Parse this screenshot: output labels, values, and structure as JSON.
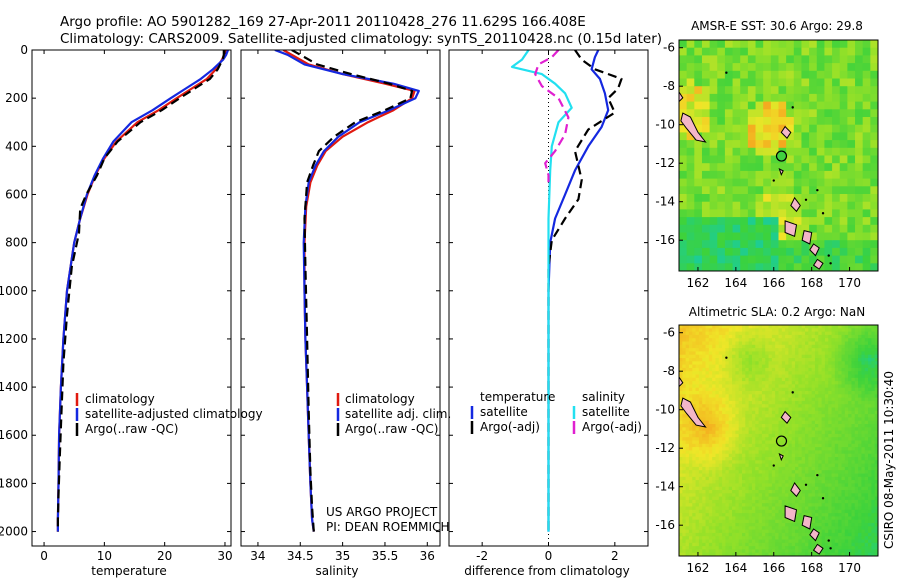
{
  "header": {
    "line1": "Argo profile: AO 5901282_169 27-Apr-2011 20110428_276 11.629S 166.408E",
    "line2": "Climatology: CARS2009. Satellite-adjusted climatology: synTS_20110428.nc (0.15d later)"
  },
  "side_label": "CSIRO 08-May-2011 10:30:40",
  "colors": {
    "clim": "#e0190f",
    "sat": "#1428e0",
    "argo": "#000000",
    "sal_sat": "#22e0f0",
    "sal_argo": "#e020d0"
  },
  "chart_data": [
    {
      "type": "line",
      "id": "temperature",
      "xlabel": "temperature",
      "ylabel": "",
      "xlim": [
        -2,
        31
      ],
      "ylim": [
        2060,
        0
      ],
      "xticks": [
        0,
        10,
        20,
        30
      ],
      "yticks": [
        0,
        200,
        400,
        600,
        800,
        1000,
        1200,
        1400,
        1600,
        1800,
        2000
      ],
      "legend": {
        "position": "lower-right",
        "entries": [
          "climatology",
          "satellite-adjusted climatology",
          "Argo(..raw -QC)"
        ]
      },
      "series": [
        {
          "name": "climatology",
          "color_key": "clim",
          "x": [
            30.1,
            29.9,
            29.5,
            28.5,
            27.0,
            24.5,
            22.0,
            19.0,
            15.5,
            12.0,
            10.0,
            8.5,
            7.2,
            6.0,
            5.0,
            3.8,
            3.2,
            2.8,
            2.5,
            2.4,
            2.3,
            2.3
          ],
          "y": [
            0,
            20,
            40,
            80,
            120,
            160,
            200,
            250,
            300,
            380,
            450,
            520,
            600,
            700,
            800,
            1000,
            1200,
            1400,
            1600,
            1800,
            1950,
            2000
          ]
        },
        {
          "name": "satellite-adjusted climatology",
          "color_key": "sat",
          "x": [
            30.5,
            30.2,
            29.7,
            28.0,
            26.0,
            23.5,
            21.0,
            18.0,
            14.5,
            11.5,
            9.8,
            8.4,
            7.1,
            6.0,
            5.0,
            3.8,
            3.2,
            2.8,
            2.5,
            2.4,
            2.3,
            2.3
          ],
          "y": [
            0,
            20,
            40,
            80,
            120,
            160,
            200,
            250,
            300,
            380,
            450,
            520,
            600,
            700,
            800,
            1000,
            1200,
            1400,
            1600,
            1800,
            1950,
            2000
          ]
        },
        {
          "name": "Argo(..raw -QC)",
          "color_key": "argo",
          "dashed": true,
          "x": [
            29.8,
            29.8,
            29.6,
            28.8,
            27.5,
            25.0,
            22.5,
            19.5,
            16.0,
            12.2,
            10.0,
            8.8,
            7.0,
            6.0,
            5.8,
            4.6,
            3.8,
            3.2,
            2.9,
            2.6,
            2.4,
            2.3,
            2.3
          ],
          "y": [
            0,
            20,
            40,
            80,
            120,
            160,
            200,
            250,
            300,
            380,
            450,
            520,
            600,
            660,
            760,
            900,
            1100,
            1300,
            1500,
            1700,
            1850,
            1950,
            2000
          ]
        }
      ]
    },
    {
      "type": "line",
      "id": "salinity",
      "xlabel": "salinity",
      "ylabel": "",
      "xlim": [
        33.8,
        36.15
      ],
      "ylim": [
        2060,
        0
      ],
      "xticks": [
        34,
        34.5,
        35,
        35.5,
        36
      ],
      "legend": {
        "position": "lower-right",
        "entries": [
          "climatology",
          "satellite adj. clim.",
          "Argo(..raw -QC)"
        ]
      },
      "annotations": [
        "US ARGO PROJECT",
        "PI: DEAN ROEMMICH"
      ],
      "series": [
        {
          "name": "climatology",
          "color_key": "clim",
          "x": [
            34.3,
            34.4,
            34.6,
            35.0,
            35.5,
            35.85,
            35.82,
            35.6,
            35.3,
            35.0,
            34.8,
            34.7,
            34.62,
            34.57,
            34.55,
            34.55,
            34.56,
            34.58,
            34.6,
            34.62,
            34.64,
            34.66
          ],
          "y": [
            0,
            20,
            60,
            100,
            140,
            170,
            200,
            250,
            300,
            360,
            420,
            480,
            550,
            650,
            800,
            1000,
            1200,
            1400,
            1600,
            1800,
            1950,
            2000
          ]
        },
        {
          "name": "satellite adj. clim.",
          "color_key": "sat",
          "x": [
            34.2,
            34.35,
            34.55,
            35.0,
            35.6,
            35.9,
            35.86,
            35.55,
            35.2,
            34.95,
            34.78,
            34.68,
            34.6,
            34.56,
            34.54,
            34.55,
            34.56,
            34.58,
            34.6,
            34.62,
            34.64,
            34.66
          ],
          "y": [
            0,
            20,
            60,
            100,
            140,
            170,
            200,
            250,
            300,
            360,
            420,
            480,
            550,
            650,
            800,
            1000,
            1200,
            1400,
            1600,
            1800,
            1950,
            2000
          ]
        },
        {
          "name": "Argo(..raw -QC)",
          "color_key": "argo",
          "dashed": true,
          "x": [
            34.4,
            34.5,
            34.7,
            35.1,
            35.55,
            35.82,
            35.8,
            35.5,
            35.15,
            34.9,
            34.72,
            34.65,
            34.58,
            34.55,
            34.56,
            34.58,
            34.6,
            34.62,
            34.64,
            34.66
          ],
          "y": [
            0,
            20,
            60,
            100,
            140,
            170,
            200,
            250,
            300,
            360,
            420,
            480,
            550,
            700,
            900,
            1200,
            1500,
            1750,
            1900,
            2000
          ]
        }
      ]
    },
    {
      "type": "line",
      "id": "difference",
      "xlabel": "difference from climatology",
      "ylabel": "",
      "xlim": [
        -3,
        3
      ],
      "ylim": [
        2060,
        0
      ],
      "xticks": [
        -2,
        0,
        2
      ],
      "legend": {
        "position": "lower",
        "temperature_title": "temperature",
        "salinity_title": "salinity",
        "temperature_entries": [
          "satellite",
          "Argo(-adj)"
        ],
        "salinity_entries": [
          "satellite",
          "Argo(-adj)"
        ]
      },
      "series": [
        {
          "name": "temperature satellite",
          "color_key": "sat",
          "x": [
            1.5,
            1.4,
            1.3,
            1.55,
            1.7,
            1.8,
            1.6,
            1.2,
            0.8,
            0.5,
            0.2,
            0.05,
            0.0,
            0.0,
            0.0,
            0.0,
            0.0
          ],
          "y": [
            0,
            30,
            80,
            120,
            180,
            250,
            320,
            400,
            500,
            600,
            700,
            800,
            1000,
            1300,
            1600,
            1900,
            2000
          ]
        },
        {
          "name": "temperature Argo(-adj)",
          "color_key": "argo",
          "dashed": true,
          "x": [
            0.8,
            1.0,
            1.4,
            2.2,
            2.1,
            1.8,
            2.0,
            1.2,
            0.8,
            1.0,
            0.9,
            0.5,
            0.1,
            0.0,
            0.0,
            0.0
          ],
          "y": [
            0,
            40,
            80,
            120,
            160,
            200,
            260,
            330,
            420,
            540,
            620,
            700,
            790,
            900,
            1400,
            2000
          ]
        },
        {
          "name": "salinity satellite",
          "color_key": "sal_sat",
          "x": [
            -0.6,
            -0.8,
            -1.1,
            -0.2,
            0.2,
            0.5,
            0.7,
            0.3,
            0.1,
            0.05,
            0.0,
            0.0,
            0.0
          ],
          "y": [
            0,
            40,
            70,
            100,
            140,
            180,
            240,
            300,
            400,
            500,
            700,
            1200,
            2000
          ]
        },
        {
          "name": "salinity Argo(-adj)",
          "color_key": "sal_argo",
          "dashed": true,
          "x": [
            0.3,
            0.1,
            -0.3,
            -0.4,
            -0.2,
            0.3,
            0.6,
            0.5,
            0.2,
            -0.1,
            0.0,
            0.0
          ],
          "y": [
            0,
            30,
            60,
            100,
            150,
            200,
            280,
            350,
            420,
            470,
            520,
            560
          ]
        }
      ]
    },
    {
      "type": "heatmap",
      "id": "sst-map",
      "title": "AMSR-E SST: 30.6 Argo: 29.8",
      "xlim": [
        161,
        171.5
      ],
      "ylim": [
        -17.6,
        -5.6
      ],
      "xticks": [
        162,
        164,
        166,
        168,
        170
      ],
      "yticks": [
        -6,
        -8,
        -10,
        -12,
        -14,
        -16
      ],
      "argo_position": [
        166.408,
        -11.629
      ]
    },
    {
      "type": "heatmap",
      "id": "sla-map",
      "title": "Altimetric SLA: 0.2 Argo: NaN",
      "xlim": [
        161,
        171.5
      ],
      "ylim": [
        -17.6,
        -5.6
      ],
      "xticks": [
        162,
        164,
        166,
        168,
        170
      ],
      "yticks": [
        -6,
        -8,
        -10,
        -12,
        -14,
        -16
      ],
      "argo_position": [
        166.408,
        -11.629
      ]
    }
  ]
}
